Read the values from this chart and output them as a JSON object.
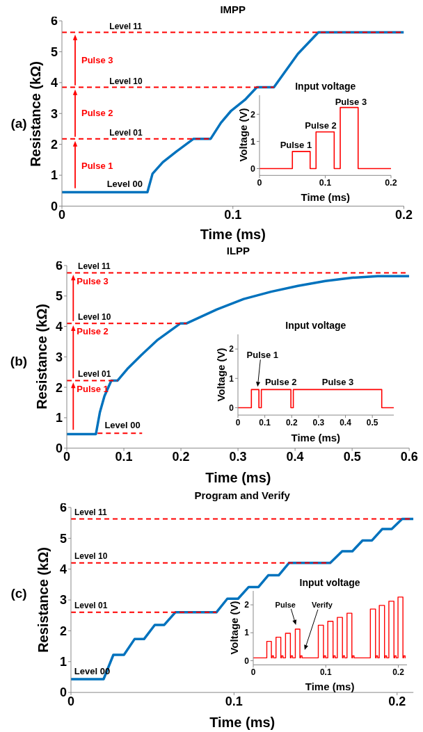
{
  "chart_data": [
    {
      "type": "line",
      "title": "IMPP",
      "xlabel": "Time (ms)",
      "ylabel": "Resistance (kΩ)",
      "xlim": [
        0,
        0.2
      ],
      "ylim": [
        0,
        6
      ],
      "xticks": [
        0,
        0.1,
        0.2
      ],
      "yticks": [
        0,
        1,
        2,
        3,
        4,
        5,
        6
      ],
      "series": [
        {
          "color": "#0072bd",
          "x": [
            0,
            0.05,
            0.053,
            0.059,
            0.067,
            0.077,
            0.087,
            0.093,
            0.099,
            0.107,
            0.114,
            0.124,
            0.131,
            0.138,
            0.15,
            0.2
          ],
          "values": [
            0.45,
            0.45,
            1.05,
            1.42,
            1.77,
            2.18,
            2.18,
            2.7,
            3.09,
            3.44,
            3.85,
            3.85,
            4.39,
            4.93,
            5.63,
            5.63
          ]
        }
      ],
      "ref_lines": [
        {
          "axis": "y",
          "value": 2.18,
          "label": "Level 01",
          "color": "#ff0000",
          "line_style": "dashed"
        },
        {
          "axis": "y",
          "value": 3.85,
          "label": "Level 10",
          "color": "#ff0000",
          "line_style": "dashed"
        },
        {
          "axis": "y",
          "value": 5.63,
          "label": "Level 11",
          "color": "#ff0000",
          "line_style": "dashed"
        }
      ],
      "annotations": [
        "(a)",
        "Level 00",
        {
          "text": "Pulse 1",
          "y": 2.18
        },
        {
          "text": "Pulse 2",
          "y": 3.85
        },
        {
          "text": "Pulse 3",
          "y": 5.63
        }
      ]
    },
    {
      "type": "line",
      "title": "Input voltage",
      "xlabel": "Time (ms)",
      "ylabel": "Voltage (V)",
      "xlim": [
        0,
        0.2
      ],
      "ylim": [
        -0.25,
        2.7
      ],
      "xticks": [
        0,
        0.1,
        0.2
      ],
      "yticks": [
        0,
        1,
        2
      ],
      "series": [
        {
          "color": "#ff0000",
          "x": [
            0,
            0.05,
            0.05,
            0.077,
            0.077,
            0.086,
            0.086,
            0.1136,
            0.1136,
            0.1228,
            0.1228,
            0.15,
            0.15,
            0.2
          ],
          "values": [
            0,
            0,
            0.63,
            0.63,
            0,
            0,
            1.35,
            1.35,
            0,
            0,
            2.25,
            2.25,
            0,
            0
          ]
        }
      ],
      "annotations": [
        "Pulse 1",
        "Pulse 2",
        "Pulse 3"
      ]
    },
    {
      "type": "line",
      "title": "ILPP",
      "xlabel": "Time (ms)",
      "ylabel": "Resistance (kΩ)",
      "xlim": [
        0,
        0.6
      ],
      "ylim": [
        0,
        6
      ],
      "xticks": [
        0,
        0.1,
        0.2,
        0.3,
        0.4,
        0.5,
        0.6
      ],
      "yticks": [
        0,
        1,
        2,
        3,
        4,
        5,
        6
      ],
      "series": [
        {
          "color": "#0072bd",
          "x": [
            0,
            0.051,
            0.058,
            0.066,
            0.078,
            0.089,
            0.106,
            0.13,
            0.158,
            0.199,
            0.21,
            0.263,
            0.31,
            0.358,
            0.405,
            0.453,
            0.5,
            0.545,
            0.6
          ],
          "values": [
            0.46,
            0.46,
            1.18,
            1.71,
            2.22,
            2.22,
            2.6,
            3.05,
            3.54,
            4.1,
            4.1,
            4.56,
            4.9,
            5.14,
            5.33,
            5.49,
            5.6,
            5.65,
            5.65
          ]
        },
        {
          "color": "#ff0000",
          "line_style": "dashed",
          "x": [
            0.054,
            0.132
          ],
          "values": [
            0.49,
            0.49
          ]
        }
      ],
      "ref_lines": [
        {
          "axis": "y",
          "value": 2.22,
          "label": "Level 01",
          "color": "#ff0000",
          "line_style": "dashed"
        },
        {
          "axis": "y",
          "value": 4.1,
          "label": "Level 10",
          "color": "#ff0000",
          "line_style": "dashed"
        },
        {
          "axis": "y",
          "value": 5.76,
          "label": "Level 11",
          "color": "#ff0000",
          "line_style": "dashed"
        }
      ],
      "annotations": [
        "(b)",
        "Level 00",
        {
          "text": "Pulse 1",
          "y": 2.22
        },
        {
          "text": "Pulse 2",
          "y": 4.1
        },
        {
          "text": "Pulse 3",
          "y": 5.76
        }
      ]
    },
    {
      "type": "line",
      "title": "Input voltage",
      "xlabel": "Time (ms)",
      "ylabel": "Voltage (V)",
      "xlim": [
        0,
        0.58
      ],
      "ylim": [
        -0.25,
        2.5
      ],
      "xticks": [
        0,
        0.1,
        0.2,
        0.3,
        0.4,
        0.5
      ],
      "yticks": [
        0,
        1,
        2
      ],
      "series": [
        {
          "color": "#ff0000",
          "x": [
            0,
            0.05,
            0.05,
            0.078,
            0.078,
            0.087,
            0.087,
            0.197,
            0.197,
            0.206,
            0.206,
            0.535,
            0.535,
            0.58
          ],
          "values": [
            0,
            0,
            0.62,
            0.62,
            0,
            0,
            0.62,
            0.62,
            0,
            0,
            0.62,
            0.62,
            0,
            0
          ]
        }
      ],
      "annotations": [
        "Pulse 1",
        "Pulse 2",
        "Pulse 3"
      ]
    },
    {
      "type": "line",
      "title": "Program and Verify",
      "xlabel": "Time (ms)",
      "ylabel": "Resistance (kΩ)",
      "xlim": [
        0,
        0.21
      ],
      "ylim": [
        0,
        6
      ],
      "xticks": [
        0,
        0.1,
        0.2
      ],
      "yticks": [
        0,
        1,
        2,
        3,
        4,
        5,
        6
      ],
      "series": [
        {
          "color": "#0072bd",
          "x": [
            0,
            0.02,
            0.026,
            0.0325,
            0.039,
            0.0448,
            0.0514,
            0.0572,
            0.064,
            0.0892,
            0.0959,
            0.1025,
            0.109,
            0.115,
            0.121,
            0.1274,
            0.1337,
            0.159,
            0.1663,
            0.1726,
            0.1788,
            0.1846,
            0.1909,
            0.1967,
            0.2031,
            0.21
          ],
          "values": [
            0.43,
            0.43,
            1.22,
            1.22,
            1.73,
            1.73,
            2.19,
            2.19,
            2.6,
            2.6,
            3.04,
            3.04,
            3.42,
            3.42,
            3.8,
            3.8,
            4.2,
            4.2,
            4.58,
            4.58,
            4.93,
            4.93,
            5.3,
            5.3,
            5.63,
            5.63
          ]
        }
      ],
      "ref_lines": [
        {
          "axis": "y",
          "value": 2.6,
          "label": "Level 01",
          "color": "#ff0000",
          "line_style": "dashed"
        },
        {
          "axis": "y",
          "value": 4.2,
          "label": "Level 10",
          "color": "#ff0000",
          "line_style": "dashed"
        },
        {
          "axis": "y",
          "value": 5.63,
          "label": "Level 11",
          "color": "#ff0000",
          "line_style": "dashed"
        }
      ],
      "annotations": [
        "(c)",
        "Level 00"
      ]
    },
    {
      "type": "line",
      "title": "Input voltage",
      "xlabel": "Time (ms)",
      "ylabel": "Voltage (V)",
      "xlim": [
        0,
        0.212
      ],
      "ylim": [
        -0.15,
        2.5
      ],
      "xticks": [
        0,
        0.1,
        0.2
      ],
      "yticks": [
        0,
        1,
        2
      ],
      "series": [
        {
          "color": "#ff0000",
          "x": [
            0,
            0.0187,
            0.0187,
            0.025,
            0.025,
            0.026,
            0.026,
            0.028,
            0.028,
            0.0314,
            0.0314,
            0.038,
            0.038,
            0.039,
            0.039,
            0.041,
            0.041,
            0.0445,
            0.0445,
            0.0512,
            0.0512,
            0.0522,
            0.0522,
            0.0542,
            0.0542,
            0.058,
            0.058,
            0.0643,
            0.0643,
            0.0653,
            0.0653,
            0.0673,
            0.0673,
            0.0897,
            0.0897,
            0.0968,
            0.0968,
            0.0978,
            0.0978,
            0.0998,
            0.0998,
            0.1028,
            0.1028,
            0.11,
            0.11,
            0.111,
            0.111,
            0.113,
            0.113,
            0.1159,
            0.1159,
            0.123,
            0.123,
            0.124,
            0.124,
            0.126,
            0.126,
            0.1293,
            0.1293,
            0.136,
            0.136,
            0.137,
            0.137,
            0.139,
            0.139,
            0.1615,
            0.1615,
            0.1686,
            0.1686,
            0.1696,
            0.1696,
            0.1716,
            0.1716,
            0.1738,
            0.1738,
            0.181,
            0.181,
            0.182,
            0.182,
            0.184,
            0.184,
            0.187,
            0.187,
            0.194,
            0.194,
            0.195,
            0.195,
            0.197,
            0.197,
            0.1996,
            0.1996,
            0.2064,
            0.2064,
            0.2074,
            0.2074,
            0.2094,
            0.2094,
            0.21
          ],
          "values": [
            0.1,
            0.1,
            0.69,
            0.69,
            0.1,
            0.1,
            0.17,
            0.17,
            0.1,
            0.1,
            0.84,
            0.84,
            0.1,
            0.1,
            0.17,
            0.17,
            0.1,
            0.1,
            0.98,
            0.98,
            0.1,
            0.1,
            0.17,
            0.17,
            0.1,
            0.1,
            1.13,
            1.13,
            0.1,
            0.1,
            0.17,
            0.17,
            0.1,
            0.1,
            1.27,
            1.27,
            0.1,
            0.1,
            0.17,
            0.17,
            0.1,
            0.1,
            1.41,
            1.41,
            0.1,
            0.1,
            0.17,
            0.17,
            0.1,
            0.1,
            1.55,
            1.55,
            0.1,
            0.1,
            0.17,
            0.17,
            0.1,
            0.1,
            1.7,
            1.7,
            0.1,
            0.1,
            0.17,
            0.17,
            0.1,
            0.1,
            1.85,
            1.85,
            0.1,
            0.1,
            0.17,
            0.17,
            0.1,
            0.1,
            1.98,
            1.98,
            0.1,
            0.1,
            0.17,
            0.17,
            0.1,
            0.1,
            2.13,
            2.13,
            0.1,
            0.1,
            0.17,
            0.17,
            0.1,
            0.1,
            2.28,
            2.28,
            0.1,
            0.1,
            0.17,
            0.17,
            0.1,
            0.1
          ]
        }
      ],
      "annotations": [
        "Pulse",
        "Verify"
      ]
    }
  ]
}
